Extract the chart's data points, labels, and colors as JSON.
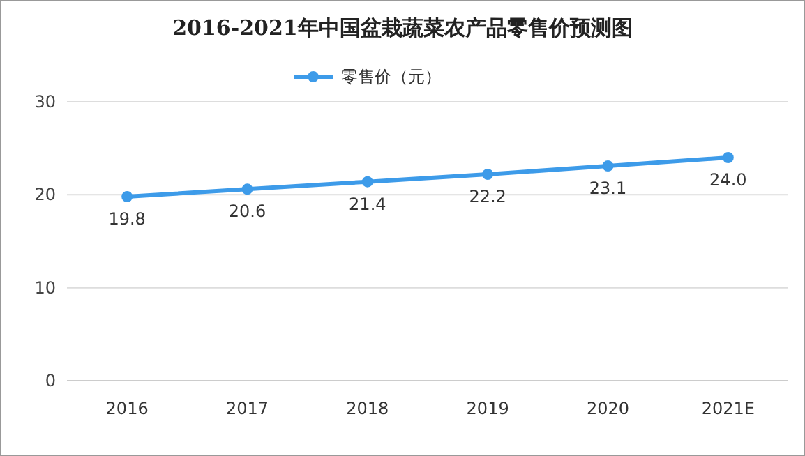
{
  "chart_data": {
    "type": "line",
    "title": "2016-2021年中国盆栽蔬菜农产品零售价预测图",
    "categories": [
      "2016",
      "2017",
      "2018",
      "2019",
      "2020",
      "2021E"
    ],
    "series": [
      {
        "name": "零售价（元）",
        "color": "#3d9be9",
        "values": [
          19.8,
          20.6,
          21.4,
          22.2,
          23.1,
          24.0
        ]
      }
    ],
    "value_labels": [
      "19.8",
      "20.6",
      "21.4",
      "22.2",
      "23.1",
      "24.0"
    ],
    "ylim": [
      0,
      30
    ],
    "yticks": [
      0,
      10,
      20,
      30
    ],
    "grid": "y",
    "legend": "top",
    "marker": "circle",
    "line_style": "solid"
  }
}
